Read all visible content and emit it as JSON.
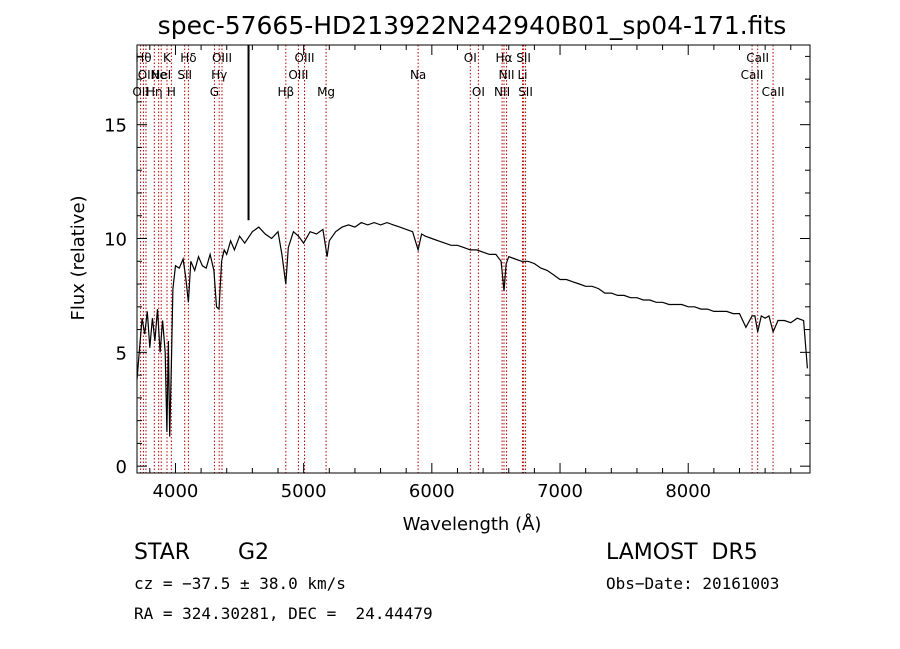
{
  "chart_data": {
    "type": "line",
    "title": "spec-57665-HD213922N242940B01_sp04-171.fits",
    "xlabel": "Wavelength (Å)",
    "ylabel": "Flux (relative)",
    "xlim": [
      3700,
      8950
    ],
    "ylim": [
      -0.3,
      18.5
    ],
    "xticks": [
      4000,
      5000,
      6000,
      7000,
      8000
    ],
    "yticks": [
      0,
      5,
      10,
      15
    ],
    "grid": false,
    "series": [
      {
        "x": [
          3700,
          3720,
          3740,
          3760,
          3780,
          3800,
          3820,
          3840,
          3860,
          3880,
          3900,
          3920,
          3933,
          3945,
          3955,
          3968,
          3980,
          4000,
          4030,
          4060,
          4080,
          4101,
          4120,
          4150,
          4180,
          4210,
          4240,
          4270,
          4300,
          4320,
          4340,
          4360,
          4380,
          4400,
          4430,
          4460,
          4500,
          4540,
          4600,
          4650,
          4700,
          4750,
          4800,
          4830,
          4861,
          4880,
          4920,
          4960,
          5000,
          5050,
          5100,
          5150,
          5170,
          5183,
          5200,
          5250,
          5300,
          5350,
          5400,
          5450,
          5500,
          5550,
          5600,
          5650,
          5700,
          5750,
          5800,
          5850,
          5893,
          5920,
          5950,
          6000,
          6050,
          6100,
          6150,
          6200,
          6250,
          6300,
          6350,
          6400,
          6450,
          6500,
          6540,
          6563,
          6580,
          6600,
          6650,
          6700,
          6750,
          6800,
          6850,
          6900,
          6950,
          7000,
          7050,
          7100,
          7150,
          7200,
          7250,
          7300,
          7350,
          7400,
          7450,
          7500,
          7550,
          7600,
          7650,
          7700,
          7750,
          7800,
          7850,
          7900,
          7950,
          8000,
          8050,
          8100,
          8150,
          8200,
          8250,
          8300,
          8350,
          8400,
          8450,
          8498,
          8520,
          8542,
          8570,
          8600,
          8630,
          8662,
          8700,
          8750,
          8800,
          8850,
          8900,
          8930
        ],
        "y": [
          3.8,
          5.2,
          6.5,
          5.8,
          6.8,
          5.2,
          6.5,
          5.5,
          6.9,
          5.0,
          6.4,
          5.0,
          1.5,
          5.5,
          1.3,
          4.5,
          7.8,
          8.8,
          8.7,
          9.1,
          8.3,
          7.2,
          9.0,
          8.6,
          9.2,
          8.8,
          8.7,
          9.3,
          8.6,
          7.0,
          6.9,
          9.0,
          9.5,
          9.3,
          9.9,
          9.5,
          10.1,
          9.8,
          10.3,
          10.5,
          10.2,
          10.0,
          10.3,
          9.3,
          8.0,
          9.6,
          10.3,
          10.1,
          9.8,
          10.3,
          10.2,
          10.4,
          9.7,
          9.2,
          9.9,
          10.3,
          10.5,
          10.6,
          10.5,
          10.7,
          10.6,
          10.7,
          10.6,
          10.7,
          10.6,
          10.5,
          10.4,
          10.3,
          9.5,
          10.2,
          10.1,
          10.0,
          9.9,
          9.8,
          9.7,
          9.7,
          9.6,
          9.5,
          9.5,
          9.4,
          9.3,
          9.3,
          9.0,
          7.7,
          8.9,
          9.2,
          9.1,
          9.0,
          9.0,
          8.9,
          8.7,
          8.6,
          8.4,
          8.2,
          8.2,
          8.1,
          8.0,
          7.9,
          7.9,
          7.8,
          7.6,
          7.6,
          7.5,
          7.5,
          7.4,
          7.4,
          7.3,
          7.3,
          7.2,
          7.2,
          7.1,
          7.1,
          7.1,
          7.0,
          7.0,
          6.9,
          6.9,
          6.8,
          6.8,
          6.8,
          6.7,
          6.7,
          6.1,
          6.6,
          6.6,
          5.9,
          6.6,
          6.5,
          6.6,
          5.9,
          6.4,
          6.4,
          6.3,
          6.5,
          6.4,
          4.3
        ]
      }
    ],
    "annotations": [
      {
        "x": 3728,
        "row": 2,
        "text": "OII"
      },
      {
        "x": 3750,
        "row": 0,
        "text": "Hθ"
      },
      {
        "x": 3770,
        "row": 1,
        "text": "OII"
      },
      {
        "x": 3835,
        "row": 2,
        "text": "Hη"
      },
      {
        "x": 3869,
        "row": 1,
        "text": "Ne"
      },
      {
        "x": 3889,
        "row": 1,
        "text": "HeI"
      },
      {
        "x": 3934,
        "row": 0,
        "text": "K"
      },
      {
        "x": 3968,
        "row": 2,
        "text": "H"
      },
      {
        "x": 4101,
        "row": 0,
        "text": "Hδ"
      },
      {
        "x": 4072,
        "row": 1,
        "text": "SII"
      },
      {
        "x": 4304,
        "row": 2,
        "text": "G"
      },
      {
        "x": 4341,
        "row": 1,
        "text": "Hγ"
      },
      {
        "x": 4363,
        "row": 0,
        "text": "OIII"
      },
      {
        "x": 4861,
        "row": 2,
        "text": "Hβ"
      },
      {
        "x": 4959,
        "row": 1,
        "text": "OIII"
      },
      {
        "x": 5007,
        "row": 0,
        "text": "OIII"
      },
      {
        "x": 5175,
        "row": 2,
        "text": "Mg"
      },
      {
        "x": 5893,
        "row": 1,
        "text": "Na"
      },
      {
        "x": 6300,
        "row": 0,
        "text": "OI"
      },
      {
        "x": 6363,
        "row": 2,
        "text": "OI"
      },
      {
        "x": 6548,
        "row": 2,
        "text": "NII"
      },
      {
        "x": 6563,
        "row": 0,
        "text": "Hα"
      },
      {
        "x": 6583,
        "row": 1,
        "text": "NII"
      },
      {
        "x": 6707,
        "row": 1,
        "text": "Li"
      },
      {
        "x": 6716,
        "row": 0,
        "text": "SII"
      },
      {
        "x": 6731,
        "row": 2,
        "text": "SII"
      },
      {
        "x": 8498,
        "row": 1,
        "text": "CaII"
      },
      {
        "x": 8542,
        "row": 0,
        "text": "CaII"
      },
      {
        "x": 8662,
        "row": 2,
        "text": "CaII"
      }
    ],
    "marker_line_x": 4570,
    "line_colors": {
      "spectrum": "#000000",
      "line_markers": "#b80000"
    }
  },
  "info": {
    "class_label": "STAR",
    "subclass": "G2",
    "survey": "LAMOST  DR5",
    "cz": "cz = −37.5 ± 38.0 km/s",
    "obs_date": "Obs−Date: 20161003",
    "coords": "RA = 324.30281, DEC =  24.44479"
  }
}
